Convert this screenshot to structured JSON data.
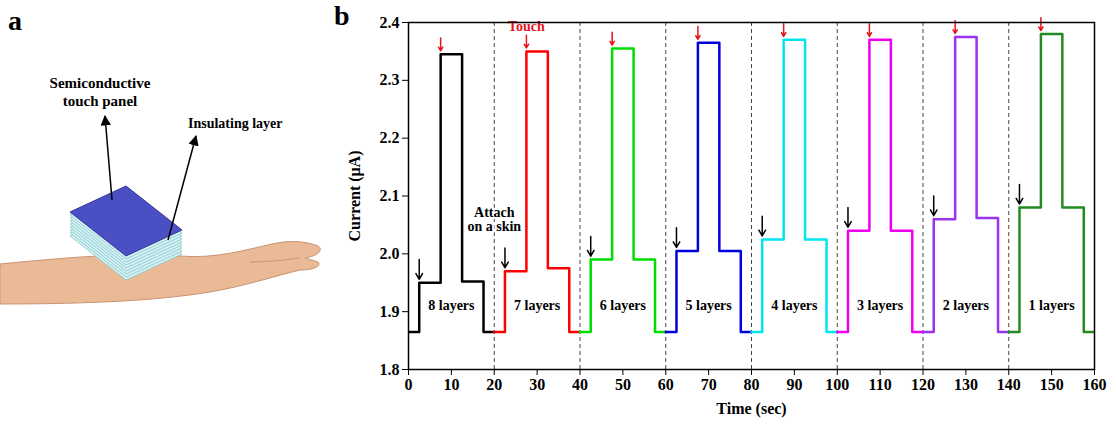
{
  "panel_a": {
    "letter": "a",
    "labels": [
      "Semiconductive touch panel",
      "Insulating layer"
    ]
  },
  "panel_b": {
    "letter": "b"
  },
  "chart_data": {
    "type": "line",
    "xlabel": "Time (sec)",
    "ylabel": "Current (μA)",
    "xlim": [
      0,
      160
    ],
    "xticks": [
      0,
      10,
      20,
      30,
      40,
      50,
      60,
      70,
      80,
      90,
      100,
      110,
      120,
      130,
      140,
      150,
      160
    ],
    "ylim": [
      1.8,
      2.4
    ],
    "yticks": [
      1.8,
      1.9,
      {
        "value": 2,
        "label": "2.0"
      },
      2.1,
      2.2,
      2.3,
      2.4
    ],
    "grid": false,
    "annotations": [
      {
        "text": "Touch",
        "x": 27.5,
        "y": 2.385,
        "color": "#e8141c"
      },
      {
        "text": "Attach on a skin",
        "x": 20,
        "y": 2.06,
        "color": "#000000"
      }
    ],
    "series": [
      {
        "name": "8 layers",
        "color": "#000000",
        "x": [
          0,
          2.5,
          2.5,
          7.5,
          7.5,
          12.5,
          12.5,
          17.5,
          17.5,
          20
        ],
        "values": [
          1.865,
          1.865,
          1.95,
          1.95,
          2.345,
          2.345,
          1.952,
          1.952,
          1.865,
          1.865
        ]
      },
      {
        "name": "7 layers",
        "color": "#ff0000",
        "x": [
          20,
          22.5,
          22.5,
          27.5,
          27.5,
          32.5,
          32.5,
          37.5,
          37.5,
          40
        ],
        "values": [
          1.865,
          1.865,
          1.97,
          1.97,
          2.35,
          2.35,
          1.975,
          1.975,
          1.865,
          1.865
        ]
      },
      {
        "name": "6 layers",
        "color": "#00dd00",
        "x": [
          40,
          42.5,
          42.5,
          47.5,
          47.5,
          52.5,
          52.5,
          57.5,
          57.5,
          60
        ],
        "values": [
          1.865,
          1.865,
          1.99,
          1.99,
          2.355,
          2.355,
          1.99,
          1.99,
          1.865,
          1.865
        ]
      },
      {
        "name": "5 layers",
        "color": "#0000dd",
        "x": [
          60,
          62.5,
          62.5,
          67.5,
          67.5,
          72.5,
          72.5,
          77.5,
          77.5,
          80
        ],
        "values": [
          1.865,
          1.865,
          2.005,
          2.005,
          2.365,
          2.365,
          2.005,
          2.005,
          1.865,
          1.865
        ]
      },
      {
        "name": "4 layers",
        "color": "#00e5ee",
        "x": [
          80,
          82.5,
          82.5,
          87.5,
          87.5,
          92.5,
          92.5,
          97.5,
          97.5,
          100
        ],
        "values": [
          1.865,
          1.865,
          2.025,
          2.025,
          2.37,
          2.37,
          2.025,
          2.025,
          1.865,
          1.865
        ]
      },
      {
        "name": "3 layers",
        "color": "#ee00ee",
        "x": [
          100,
          102.5,
          102.5,
          107.5,
          107.5,
          112.5,
          112.5,
          117.5,
          117.5,
          120
        ],
        "values": [
          1.865,
          1.865,
          2.04,
          2.04,
          2.37,
          2.37,
          2.04,
          2.04,
          1.865,
          1.865
        ]
      },
      {
        "name": "2 layers",
        "color": "#9933ee",
        "x": [
          120,
          122.5,
          122.5,
          127.5,
          127.5,
          132.5,
          132.5,
          137.5,
          137.5,
          140
        ],
        "values": [
          1.865,
          1.865,
          2.06,
          2.06,
          2.375,
          2.375,
          2.062,
          2.062,
          1.865,
          1.865
        ]
      },
      {
        "name": "1 layers",
        "color": "#228b22",
        "x": [
          140,
          142.5,
          142.5,
          147.5,
          147.5,
          152.5,
          152.5,
          157.5,
          157.5,
          160
        ],
        "values": [
          1.865,
          1.865,
          2.08,
          2.08,
          2.38,
          2.38,
          2.08,
          2.08,
          1.865,
          1.865
        ]
      }
    ]
  }
}
